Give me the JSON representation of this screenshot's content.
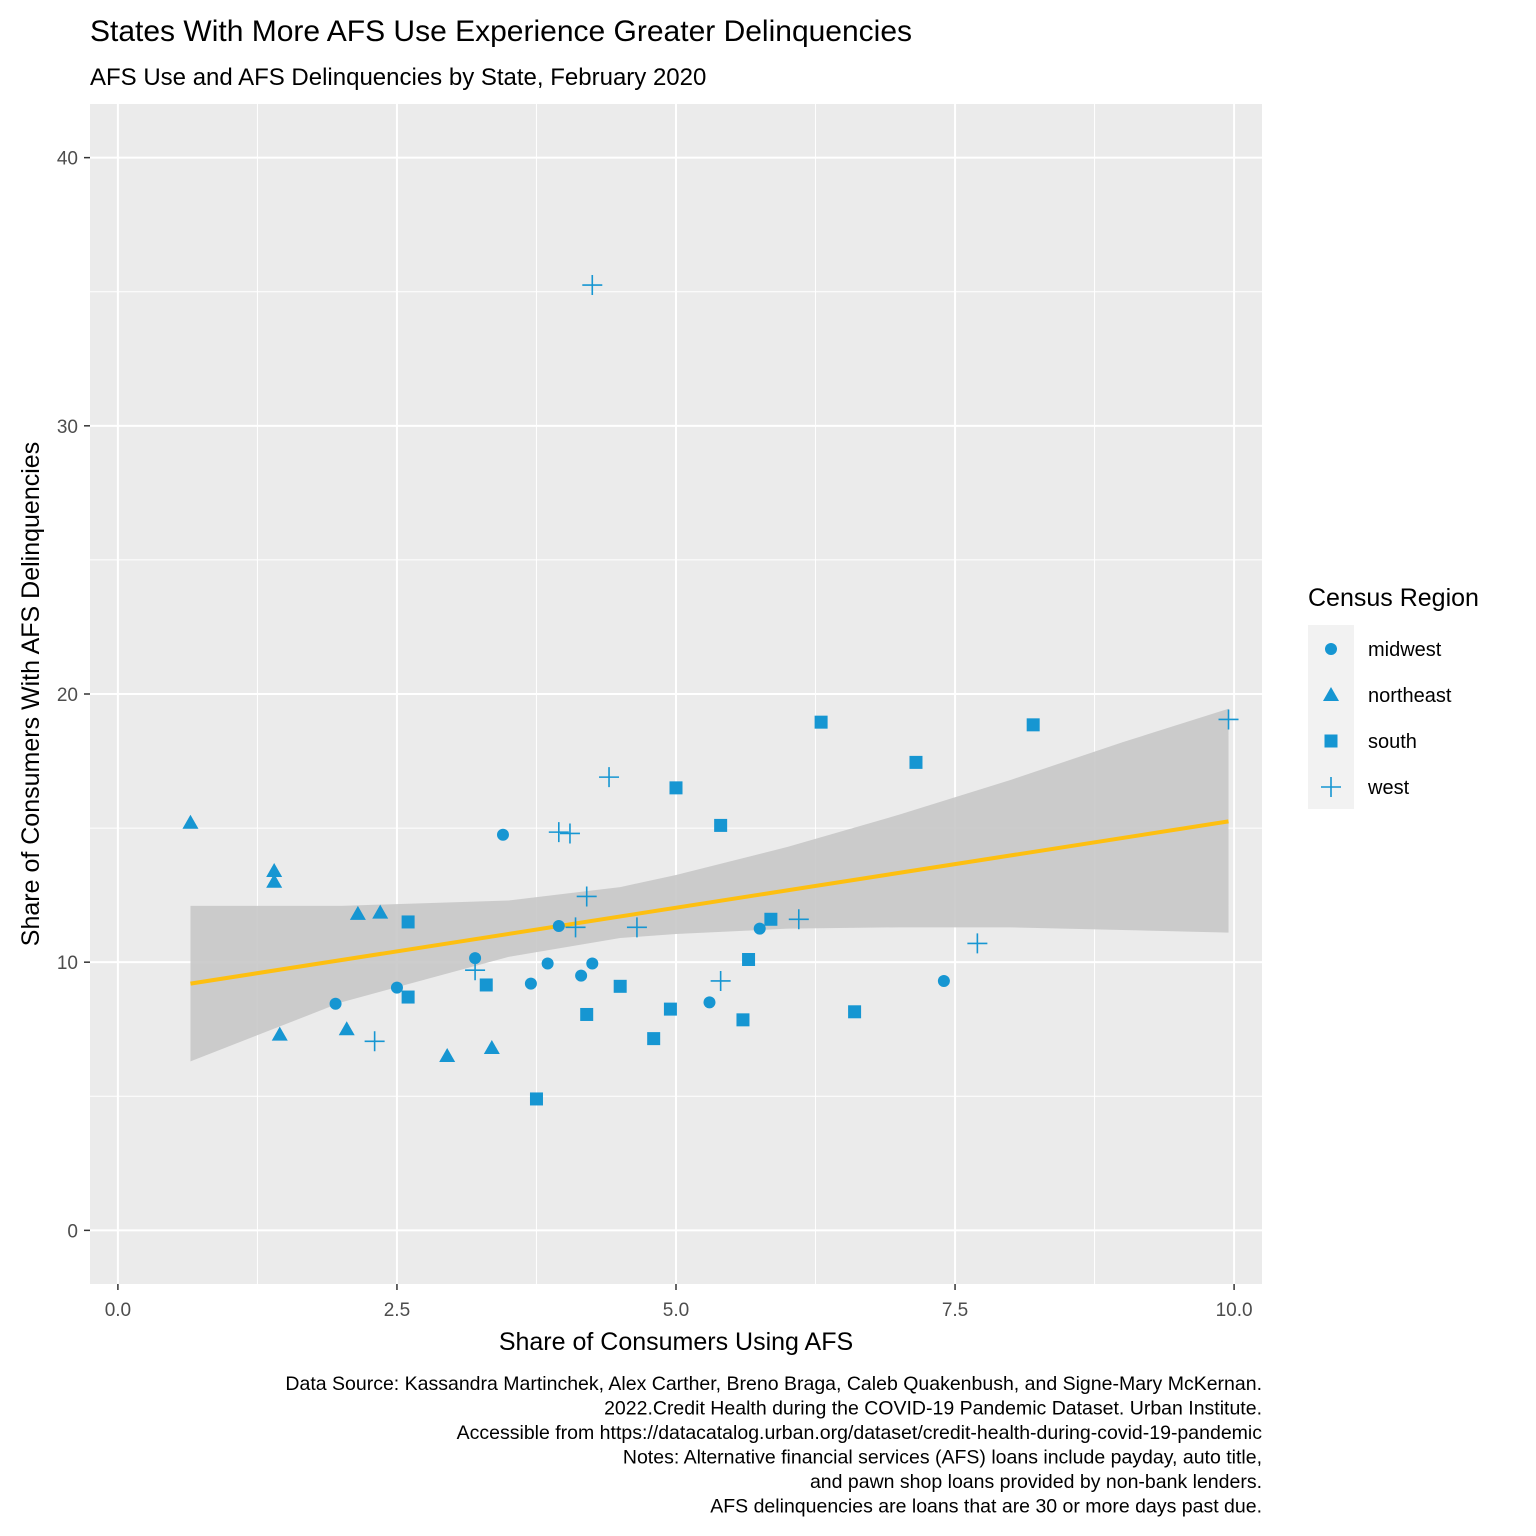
{
  "chart_data": {
    "type": "scatter",
    "title": "States With More AFS Use Experience Greater Delinquencies",
    "subtitle": "AFS Use and AFS Delinquencies by State, February 2020",
    "xlabel": "Share of Consumers Using AFS",
    "ylabel": "Share of Consumers With AFS Delinquencies",
    "xlim": [
      -0.25,
      10.25
    ],
    "ylim": [
      -2,
      42
    ],
    "x_ticks": [
      0,
      2.5,
      5,
      7.5,
      10
    ],
    "x_tick_labels": [
      "0.0",
      "2.5",
      "5.0",
      "7.5",
      "10.0"
    ],
    "y_ticks": [
      0,
      10,
      20,
      30,
      40
    ],
    "y_tick_labels": [
      "0",
      "10",
      "20",
      "30",
      "40"
    ],
    "grid": true,
    "legend": {
      "title": "Census Region",
      "position": "right",
      "entries": [
        "midwest",
        "northeast",
        "south",
        "west"
      ]
    },
    "colors": {
      "points": "#1696d2",
      "trend_line": "#fdbf11",
      "confidence_band": "#c8c8c8",
      "panel_background": "#ebebeb",
      "gridline": "#ffffff"
    },
    "series": [
      {
        "name": "midwest",
        "shape": "circle",
        "points": [
          [
            1.95,
            8.45
          ],
          [
            2.5,
            9.05
          ],
          [
            3.2,
            10.15
          ],
          [
            3.45,
            14.75
          ],
          [
            3.7,
            9.2
          ],
          [
            3.85,
            9.95
          ],
          [
            3.95,
            11.35
          ],
          [
            4.15,
            9.5
          ],
          [
            4.25,
            9.95
          ],
          [
            5.3,
            8.5
          ],
          [
            5.75,
            11.25
          ],
          [
            7.4,
            9.3
          ]
        ]
      },
      {
        "name": "northeast",
        "shape": "triangle",
        "points": [
          [
            0.65,
            15.2
          ],
          [
            1.4,
            13.4
          ],
          [
            1.4,
            13.0
          ],
          [
            1.45,
            7.3
          ],
          [
            2.05,
            7.5
          ],
          [
            2.15,
            11.8
          ],
          [
            2.35,
            11.85
          ],
          [
            2.95,
            6.5
          ],
          [
            3.35,
            6.8
          ]
        ]
      },
      {
        "name": "south",
        "shape": "square",
        "points": [
          [
            2.6,
            11.5
          ],
          [
            2.6,
            8.7
          ],
          [
            3.3,
            9.15
          ],
          [
            3.75,
            4.9
          ],
          [
            4.2,
            8.05
          ],
          [
            4.5,
            9.1
          ],
          [
            4.8,
            7.15
          ],
          [
            4.95,
            8.25
          ],
          [
            5.0,
            16.5
          ],
          [
            5.4,
            15.1
          ],
          [
            5.6,
            7.85
          ],
          [
            5.65,
            10.1
          ],
          [
            5.85,
            11.6
          ],
          [
            6.3,
            18.95
          ],
          [
            6.6,
            8.15
          ],
          [
            7.15,
            17.45
          ],
          [
            8.2,
            18.85
          ]
        ]
      },
      {
        "name": "west",
        "shape": "plus",
        "points": [
          [
            2.3,
            7.05
          ],
          [
            3.2,
            9.7
          ],
          [
            3.95,
            14.85
          ],
          [
            4.05,
            14.8
          ],
          [
            4.1,
            11.3
          ],
          [
            4.2,
            12.45
          ],
          [
            4.25,
            35.25
          ],
          [
            4.4,
            16.9
          ],
          [
            4.65,
            11.3
          ],
          [
            5.4,
            9.3
          ],
          [
            6.1,
            11.6
          ],
          [
            7.7,
            10.7
          ],
          [
            9.95,
            19.05
          ]
        ]
      }
    ],
    "trend_line": {
      "method": "linear",
      "x": [
        0.65,
        9.95
      ],
      "y": [
        9.2,
        15.25
      ]
    },
    "confidence_band": {
      "x": [
        0.65,
        2.0,
        3.5,
        4.5,
        5.0,
        6.0,
        7.0,
        8.0,
        9.0,
        9.95
      ],
      "lower": [
        6.3,
        8.5,
        10.2,
        10.9,
        11.05,
        11.25,
        11.3,
        11.3,
        11.2,
        11.1
      ],
      "upper": [
        12.1,
        12.1,
        12.3,
        12.8,
        13.25,
        14.3,
        15.5,
        16.8,
        18.2,
        19.45
      ]
    },
    "caption": [
      "Data Source: Kassandra Martinchek, Alex Carther, Breno Braga, Caleb Quakenbush, and Signe-Mary McKernan.",
      "2022.Credit Health during the COVID-19 Pandemic Dataset. Urban Institute.",
      "Accessible from https://datacatalog.urban.org/dataset/credit-health-during-covid-19-pandemic",
      "Notes: Alternative financial services (AFS) loans include payday, auto title,",
      "and pawn shop loans provided by non-bank lenders.",
      "AFS delinquencies are loans that are 30 or more days past due."
    ]
  }
}
